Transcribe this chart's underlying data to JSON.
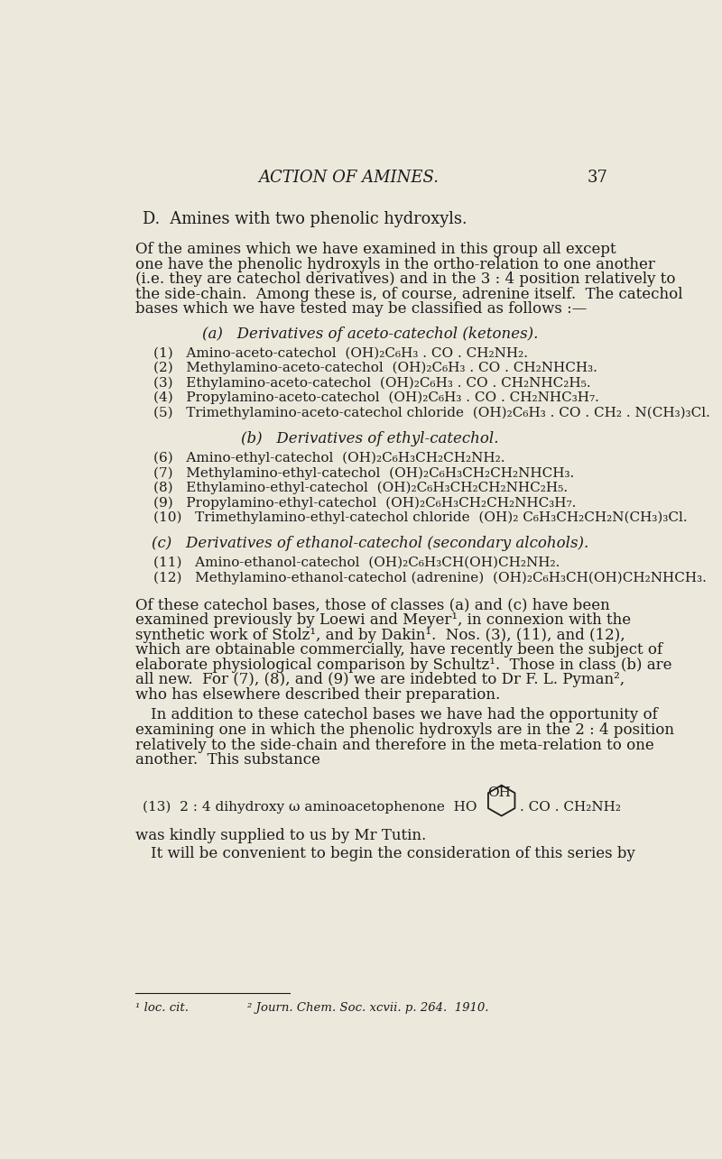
{
  "bg_color": "#ede8dc",
  "text_color": "#1c1c1c",
  "header_text": "ACTION OF AMINES.",
  "page_number": "37",
  "section_heading_d": "D.",
  "section_heading_rest": "Amines with two phenolic hydroxyls.",
  "para1_lines": [
    "Of the amines which we have examined in this group all except",
    "one have the phenolic hydroxyls in the ortho-relation to one another",
    "(i.e. they are catechol derivatives) and in the 3 : 4 position relatively to",
    "the side-chain.  Among these is, of course, adrenine itself.  The catechol",
    "bases which we have tested may be classified as follows :—"
  ],
  "subhead_a": "(a)   Derivatives of aceto-catechol (ketones).",
  "items_a": [
    "(1)   Amino-aceto-catechol  (OH)₂C₆H₃ . CO . CH₂NH₂.",
    "(2)   Methylamino-aceto-catechol  (OH)₂C₆H₃ . CO . CH₂NHCH₃.",
    "(3)   Ethylamino-aceto-catechol  (OH)₂C₆H₃ . CO . CH₂NHC₂H₅.",
    "(4)   Propylamino-aceto-catechol  (OH)₂C₆H₃ . CO . CH₂NHC₃H₇.",
    "(5)   Trimethylamino-aceto-catechol chloride  (OH)₂C₆H₃ . CO . CH₂ . N(CH₃)₃Cl."
  ],
  "subhead_b": "(b)   Derivatives of ethyl-catechol.",
  "items_b": [
    "(6)   Amino-ethyl-catechol  (OH)₂C₆H₃CH₂CH₂NH₂.",
    "(7)   Methylamino-ethyl-catechol  (OH)₂C₆H₃CH₂CH₂NHCH₃.",
    "(8)   Ethylamino-ethyl-catechol  (OH)₂C₆H₃CH₂CH₂NHC₂H₅.",
    "(9)   Propylamino-ethyl-catechol  (OH)₂C₆H₃CH₂CH₂NHC₃H₇.",
    "(10)   Trimethylamino-ethyl-catechol chloride  (OH)₂ C₆H₃CH₂CH₂N(CH₃)₃Cl."
  ],
  "subhead_c": "(c)   Derivatives of ethanol-catechol (secondary alcohols).",
  "items_c": [
    "(11)   Amino-ethanol-catechol  (OH)₂C₆H₃CH(OH)CH₂NH₂.",
    "(12)   Methylamino-ethanol-catechol (adrenine)  (OH)₂C₆H₃CH(OH)CH₂NHCH₃."
  ],
  "para2_lines": [
    "Of these catechol bases, those of classes (a) and (c) have been",
    "examined previously by Loewi and Meyer¹, in connexion with the",
    "synthetic work of Stolz¹, and by Dakin¹.  Nos. (3), (11), and (12),",
    "which are obtainable commercially, have recently been the subject of",
    "elaborate physiological comparison by Schultz¹.  Those in class (b) are",
    "all new.  For (7), (8), and (9) we are indebted to Dr F. L. Pyman²,",
    "who has elsewhere described their preparation."
  ],
  "para3_lines": [
    "In addition to these catechol bases we have had the opportunity of",
    "examining one in which the phenolic hydroxyls are in the 2 : 4 position",
    "relatively to the side-chain and therefore in the meta-relation to one",
    "another.  This substance"
  ],
  "item13_prefix": "(13)  2 : 4 dihydroxy ω aminoacetophenone  HO",
  "item13_suffix": ". CO . CH₂NH₂",
  "item13_oh": "OH",
  "para4": "was kindly supplied to us by Mr Tutin.",
  "para5": "It will be convenient to begin the consideration of this series by",
  "footnote_left": "¹ loc. cit.",
  "footnote_right": "² Journ. Chem. Soc. xcvii. p. 264.  1910."
}
